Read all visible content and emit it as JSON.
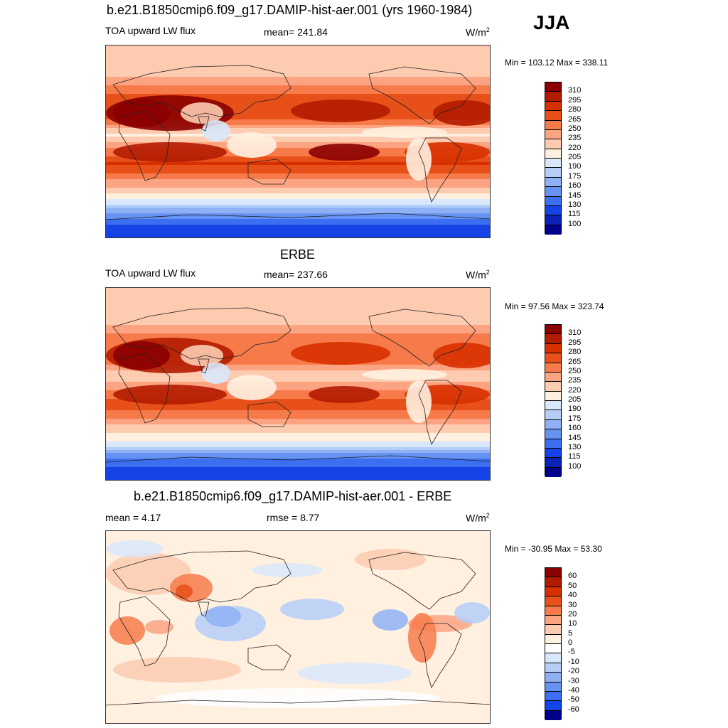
{
  "season": "JJA",
  "panels": [
    {
      "title": "b.e21.B1850cmip6.f09_g17.DAMIP-hist-aer.001 (yrs 1960-1984)",
      "variable": "TOA upward LW flux",
      "stat_text": "mean= 241.84",
      "units": "W/m",
      "units_sup": "2",
      "minmax": "Min = 103.12 Max = 338.11",
      "levels": [
        "310",
        "295",
        "280",
        "265",
        "250",
        "235",
        "220",
        "205",
        "190",
        "175",
        "160",
        "145",
        "130",
        "115",
        "100"
      ],
      "colors": [
        "#8b0000",
        "#b31b00",
        "#d73000",
        "#e8501a",
        "#f77b4a",
        "#fca482",
        "#fccbb0",
        "#fff0e0",
        "#d9e7fb",
        "#b5cef8",
        "#8fb0f5",
        "#6692f2",
        "#3b6ef0",
        "#1443e6",
        "#0a23b4",
        "#00008b"
      ]
    },
    {
      "title": "ERBE",
      "variable": "TOA upward LW flux",
      "stat_text": "mean= 237.66",
      "units": "W/m",
      "units_sup": "2",
      "minmax": "Min =  97.56 Max = 323.74",
      "levels": [
        "310",
        "295",
        "280",
        "265",
        "250",
        "235",
        "220",
        "205",
        "190",
        "175",
        "160",
        "145",
        "130",
        "115",
        "100"
      ],
      "colors": [
        "#8b0000",
        "#b31b00",
        "#d73000",
        "#e8501a",
        "#f77b4a",
        "#fca482",
        "#fccbb0",
        "#fff0e0",
        "#d9e7fb",
        "#b5cef8",
        "#8fb0f5",
        "#6692f2",
        "#3b6ef0",
        "#1443e6",
        "#0a23b4",
        "#00008b"
      ]
    },
    {
      "title": "b.e21.B1850cmip6.f09_g17.DAMIP-hist-aer.001 - ERBE",
      "stat_text": "mean =   4.17",
      "rmse_text": "rmse =   8.77",
      "units": "W/m",
      "units_sup": "2",
      "minmax": "Min = -30.95 Max =  53.30",
      "levels": [
        "60",
        "50",
        "40",
        "30",
        "20",
        "10",
        "5",
        "0",
        "-5",
        "-10",
        "-20",
        "-30",
        "-40",
        "-50",
        "-60"
      ],
      "colors": [
        "#8b0000",
        "#b31b00",
        "#d73000",
        "#e8501a",
        "#f77b4a",
        "#fca482",
        "#fccbb0",
        "#fff0e0",
        "#ffffff",
        "#d9e7fb",
        "#b5cef8",
        "#8fb0f5",
        "#6692f2",
        "#3b6ef0",
        "#1443e6",
        "#00008b"
      ]
    }
  ],
  "chart_data": [
    {
      "type": "heatmap",
      "title": "b.e21.B1850cmip6.f09_g17.DAMIP-hist-aer.001 (yrs 1960-1984)",
      "variable": "TOA upward LW flux",
      "units": "W/m2",
      "mean": 241.84,
      "min": 103.12,
      "max": 338.11,
      "contour_levels": [
        100,
        115,
        130,
        145,
        160,
        175,
        190,
        205,
        220,
        235,
        250,
        265,
        280,
        295,
        310
      ],
      "zonal_bands": [
        {
          "lat": 80,
          "value": 220
        },
        {
          "lat": 60,
          "value": 235
        },
        {
          "lat": 40,
          "value": 275
        },
        {
          "lat": 20,
          "value": 265
        },
        {
          "lat": 8,
          "value": 215
        },
        {
          "lat": -20,
          "value": 285
        },
        {
          "lat": -40,
          "value": 240
        },
        {
          "lat": -55,
          "value": 200
        },
        {
          "lat": -65,
          "value": 160
        },
        {
          "lat": -80,
          "value": 125
        }
      ]
    },
    {
      "type": "heatmap",
      "title": "ERBE",
      "variable": "TOA upward LW flux",
      "units": "W/m2",
      "mean": 237.66,
      "min": 97.56,
      "max": 323.74,
      "contour_levels": [
        100,
        115,
        130,
        145,
        160,
        175,
        190,
        205,
        220,
        235,
        250,
        265,
        280,
        295,
        310
      ],
      "zonal_bands": [
        {
          "lat": 80,
          "value": 220
        },
        {
          "lat": 60,
          "value": 230
        },
        {
          "lat": 40,
          "value": 260
        },
        {
          "lat": 20,
          "value": 255
        },
        {
          "lat": 8,
          "value": 225
        },
        {
          "lat": -20,
          "value": 275
        },
        {
          "lat": -40,
          "value": 230
        },
        {
          "lat": -55,
          "value": 200
        },
        {
          "lat": -65,
          "value": 155
        },
        {
          "lat": -80,
          "value": 120
        }
      ]
    },
    {
      "type": "heatmap",
      "title": "b.e21.B1850cmip6.f09_g17.DAMIP-hist-aer.001 - ERBE",
      "units": "W/m2",
      "mean": 4.17,
      "rmse": 8.77,
      "min": -30.95,
      "max": 53.3,
      "contour_levels": [
        -60,
        -50,
        -40,
        -30,
        -20,
        -10,
        -5,
        0,
        5,
        10,
        20,
        30,
        40,
        50,
        60
      ]
    }
  ]
}
